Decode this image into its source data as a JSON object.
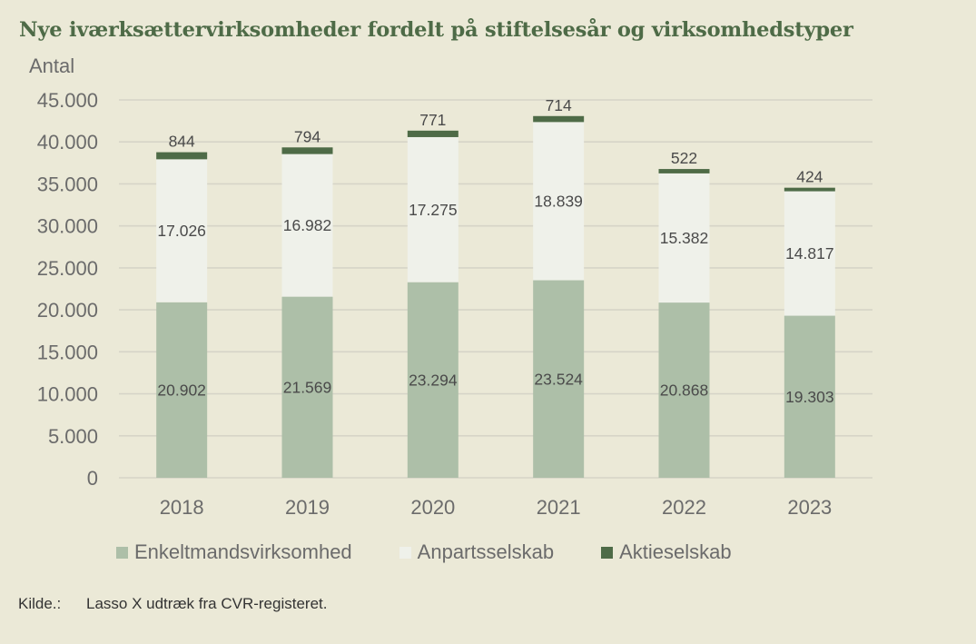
{
  "title": "Nye iværksættervirksomheder fordelt på stiftelsesår og virksomhedstyper",
  "source": {
    "label": "Kilde.:",
    "text": "Lasso X udtræk fra CVR-registeret."
  },
  "colors": {
    "background": "#ebe9d7",
    "enkeltmand": "#adbfa8",
    "anparts": "#eff1ea",
    "aktie": "#4e6b47",
    "grid": "#d6d4c7",
    "title": "#4e6b47"
  },
  "chart_data": {
    "type": "bar",
    "stacked": true,
    "ylabel": "Antal",
    "xlabel": "",
    "ylim": [
      0,
      45000
    ],
    "yticks": [
      0,
      5000,
      10000,
      15000,
      20000,
      25000,
      30000,
      35000,
      40000,
      45000
    ],
    "ytick_labels": [
      "0",
      "5.000",
      "10.000",
      "15.000",
      "20.000",
      "25.000",
      "30.000",
      "35.000",
      "40.000",
      "45.000"
    ],
    "grid": true,
    "legend_position": "bottom",
    "categories": [
      "2018",
      "2019",
      "2020",
      "2021",
      "2022",
      "2023"
    ],
    "series": [
      {
        "name": "Enkeltmandsvirksomhed",
        "values": [
          20902,
          21569,
          23294,
          23524,
          20868,
          19303
        ],
        "labels": [
          "20.902",
          "21.569",
          "23.294",
          "23.524",
          "20.868",
          "19.303"
        ]
      },
      {
        "name": "Anpartsselskab",
        "values": [
          17026,
          16982,
          17275,
          18839,
          15382,
          14817
        ],
        "labels": [
          "17.026",
          "16.982",
          "17.275",
          "18.839",
          "15.382",
          "14.817"
        ]
      },
      {
        "name": "Aktieselskab",
        "values": [
          844,
          794,
          771,
          714,
          522,
          424
        ],
        "labels": [
          "844",
          "794",
          "771",
          "714",
          "522",
          "424"
        ]
      }
    ]
  }
}
